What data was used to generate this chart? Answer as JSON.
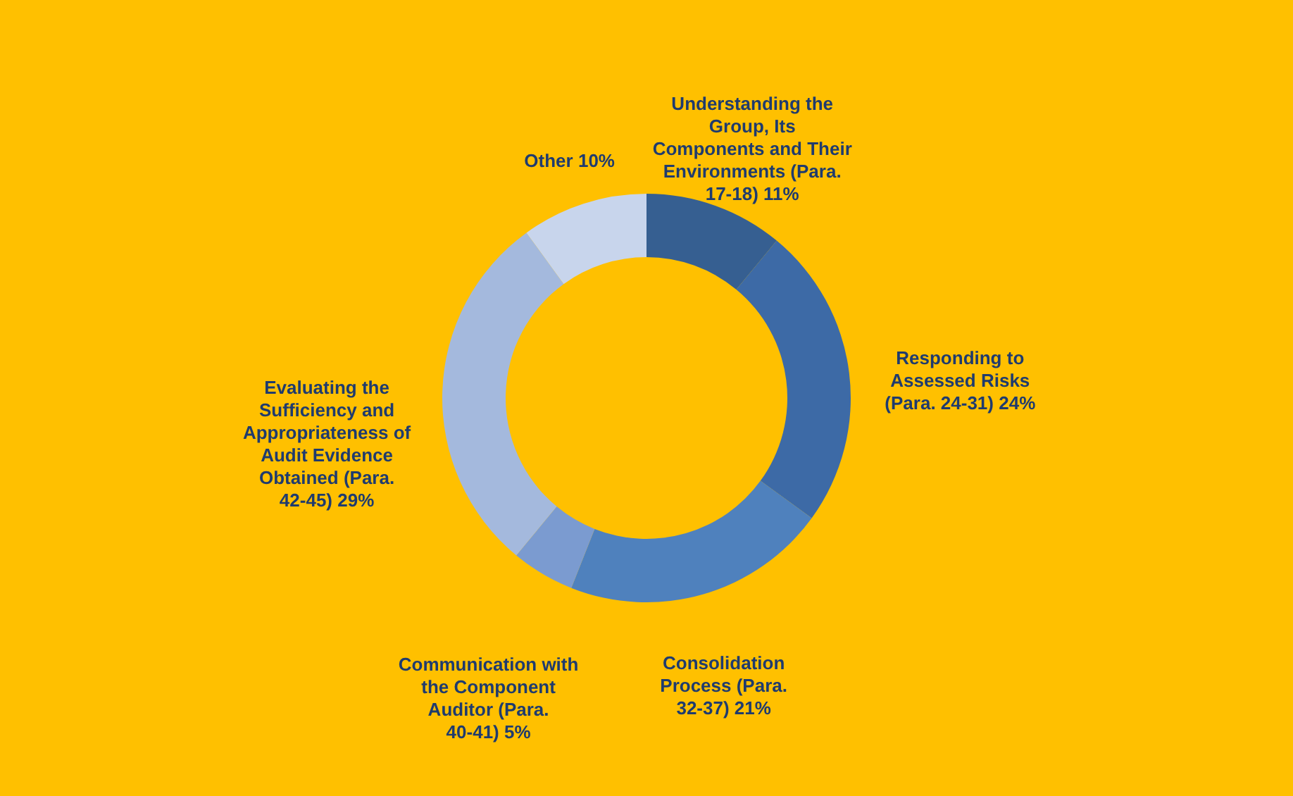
{
  "chart_data": {
    "type": "donut",
    "categories": [
      "Understanding the Group, Its Components and Their Environments (Para. 17-18)",
      "Responding to Assessed Risks (Para. 24-31)",
      "Consolidation Process (Para. 32-37)",
      "Communication with the Component Auditor (Para. 40-41)",
      "Evaluating the Sufficiency and Appropriateness of Audit Evidence Obtained (Para. 42-45)",
      "Other"
    ],
    "values": [
      11,
      24,
      21,
      5,
      29,
      10
    ],
    "value_labels": [
      "11%",
      "24%",
      "21%",
      "5%",
      "29%",
      "10%"
    ],
    "colors": [
      "#365f91",
      "#3d6aa6",
      "#4f81bd",
      "#7b9bd0",
      "#a4b9dd",
      "#c8d5ec"
    ]
  }
}
